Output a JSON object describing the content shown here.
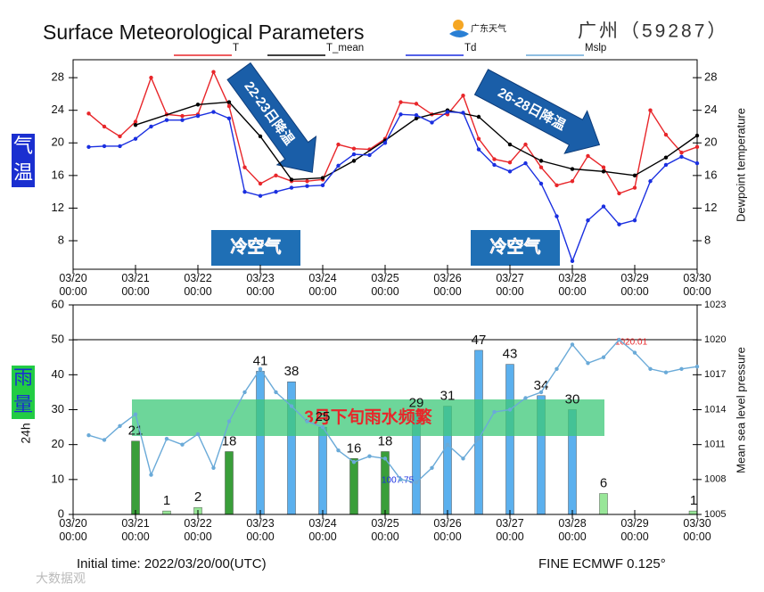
{
  "header": {
    "title": "Surface Meteorological Parameters",
    "logo": "广东天气",
    "station": "广州（59287）"
  },
  "chart_data": [
    {
      "type": "line",
      "ylabel": "气温",
      "y2label": "Dewpoint temperature",
      "xlim": [
        "03/20 00:00",
        "03/30 00:00"
      ],
      "xticks": [
        "03/20 00:00",
        "03/21 00:00",
        "03/22 00:00",
        "03/23 00:00",
        "03/24 00:00",
        "03/25 00:00",
        "03/26 00:00",
        "03/27 00:00",
        "03/28 00:00",
        "03/29 00:00",
        "03/30 00:00"
      ],
      "ylim": [
        4.5,
        30.2
      ],
      "yticks": [
        8,
        12,
        16,
        20,
        24,
        28
      ],
      "y2lim": [
        4.5,
        30.2
      ],
      "y2ticks": [
        8,
        12,
        16,
        20,
        24,
        28
      ],
      "series": [
        {
          "name": "T",
          "color": "#e8262a",
          "x": [
            "03/20 06:00",
            "03/20 12:00",
            "03/20 18:00",
            "03/21 00:00",
            "03/21 06:00",
            "03/21 12:00",
            "03/21 18:00",
            "03/22 00:00",
            "03/22 06:00",
            "03/22 12:00",
            "03/22 18:00",
            "03/23 00:00",
            "03/23 06:00",
            "03/23 12:00",
            "03/23 18:00",
            "03/24 00:00",
            "03/24 06:00",
            "03/24 12:00",
            "03/24 18:00",
            "03/25 00:00",
            "03/25 06:00",
            "03/25 12:00",
            "03/25 18:00",
            "03/26 00:00",
            "03/26 06:00",
            "03/26 12:00",
            "03/26 18:00",
            "03/27 00:00",
            "03/27 06:00",
            "03/27 12:00",
            "03/27 18:00",
            "03/28 00:00",
            "03/28 06:00",
            "03/28 12:00",
            "03/28 18:00",
            "03/29 00:00",
            "03/29 06:00",
            "03/29 12:00",
            "03/29 18:00",
            "03/30 00:00"
          ],
          "values": [
            23.6,
            22.0,
            20.8,
            22.6,
            28.0,
            23.5,
            23.3,
            23.5,
            28.7,
            24.5,
            17.0,
            15.0,
            16.0,
            15.3,
            15.3,
            15.5,
            19.8,
            19.3,
            19.2,
            20.5,
            25.0,
            24.8,
            23.5,
            23.5,
            25.8,
            20.5,
            18.0,
            17.6,
            19.8,
            17.0,
            14.8,
            15.3,
            18.4,
            17.0,
            13.8,
            14.5,
            24.0,
            21.0,
            18.8,
            19.5
          ]
        },
        {
          "name": "T_mean",
          "color": "#000000",
          "x": [
            "03/21 00:00",
            "03/22 00:00",
            "03/22 12:00",
            "03/23 00:00",
            "03/23 12:00",
            "03/24 00:00",
            "03/24 12:00",
            "03/25 00:00",
            "03/25 12:00",
            "03/26 00:00",
            "03/26 12:00",
            "03/27 00:00",
            "03/27 12:00",
            "03/28 00:00",
            "03/28 12:00",
            "03/29 00:00",
            "03/29 12:00",
            "03/30 00:00"
          ],
          "values": [
            22.2,
            24.7,
            25.0,
            20.8,
            15.5,
            15.7,
            17.8,
            20.3,
            23.0,
            24.0,
            23.2,
            19.8,
            17.8,
            16.8,
            16.5,
            16.0,
            18.2,
            20.9
          ]
        },
        {
          "name": "Td",
          "color": "#1a2fe0",
          "x": [
            "03/20 06:00",
            "03/20 12:00",
            "03/20 18:00",
            "03/21 00:00",
            "03/21 06:00",
            "03/21 12:00",
            "03/21 18:00",
            "03/22 00:00",
            "03/22 06:00",
            "03/22 12:00",
            "03/22 18:00",
            "03/23 00:00",
            "03/23 06:00",
            "03/23 12:00",
            "03/23 18:00",
            "03/24 00:00",
            "03/24 06:00",
            "03/24 12:00",
            "03/24 18:00",
            "03/25 00:00",
            "03/25 06:00",
            "03/25 12:00",
            "03/25 18:00",
            "03/26 00:00",
            "03/26 06:00",
            "03/26 12:00",
            "03/26 18:00",
            "03/27 00:00",
            "03/27 06:00",
            "03/27 12:00",
            "03/27 18:00",
            "03/28 00:00",
            "03/28 06:00",
            "03/28 12:00",
            "03/28 18:00",
            "03/29 00:00",
            "03/29 06:00",
            "03/29 12:00",
            "03/29 18:00",
            "03/30 00:00"
          ],
          "values": [
            19.5,
            19.6,
            19.6,
            20.5,
            22.0,
            22.8,
            22.8,
            23.3,
            23.8,
            23.0,
            14.0,
            13.5,
            14.0,
            14.5,
            14.7,
            14.8,
            17.2,
            18.6,
            18.5,
            20.0,
            23.5,
            23.4,
            22.5,
            23.8,
            23.7,
            19.2,
            17.3,
            16.5,
            17.5,
            15.0,
            11.0,
            5.5,
            10.5,
            12.2,
            10.0,
            10.5,
            15.3,
            17.3,
            18.3,
            17.5
          ]
        }
      ],
      "annotations": [
        "22-23日降温",
        "26-28日降温",
        "冷空气",
        "冷空气"
      ]
    },
    {
      "type": "bar",
      "ylabel": "雨量",
      "ylabel_unit": "24h",
      "y2label": "Mean sea level pressure",
      "xlim": [
        "03/20 00:00",
        "03/30 00:00"
      ],
      "xticks": [
        "03/20 00:00",
        "03/21 00:00",
        "03/22 00:00",
        "03/23 00:00",
        "03/24 00:00",
        "03/25 00:00",
        "03/26 00:00",
        "03/27 00:00",
        "03/28 00:00",
        "03/29 00:00",
        "03/30 00:00"
      ],
      "ylim": [
        0,
        60
      ],
      "yticks": [
        0,
        10,
        20,
        30,
        40,
        50,
        60
      ],
      "y2lim": [
        1005,
        1023
      ],
      "y2ticks": [
        1005,
        1008,
        1011,
        1014,
        1017,
        1020,
        1023
      ],
      "x": [
        "03/21 00:00",
        "03/21 12:00",
        "03/22 00:00",
        "03/22 12:00",
        "03/23 00:00",
        "03/23 12:00",
        "03/24 00:00",
        "03/24 12:00",
        "03/25 00:00",
        "03/25 12:00",
        "03/26 00:00",
        "03/26 12:00",
        "03/27 00:00",
        "03/27 12:00",
        "03/28 00:00",
        "03/28 12:00",
        "03/30 00:00"
      ],
      "values": [
        21,
        1,
        2,
        18,
        41,
        38,
        25,
        16,
        18,
        29,
        31,
        47,
        43,
        34,
        30,
        6,
        1
      ],
      "colors": [
        "#3a9e3a",
        "#98e698",
        "#98e698",
        "#3a9e3a",
        "#5bb0ee",
        "#5bb0ee",
        "#5bb0ee",
        "#3a9e3a",
        "#3a9e3a",
        "#5bb0ee",
        "#5bb0ee",
        "#5bb0ee",
        "#5bb0ee",
        "#5bb0ee",
        "#5bb0ee",
        "#98e698",
        "#98e698"
      ],
      "series": [
        {
          "name": "Mslp",
          "color": "#6aaad8",
          "axis": "y2",
          "x": [
            "03/20 06:00",
            "03/20 12:00",
            "03/20 18:00",
            "03/21 00:00",
            "03/21 06:00",
            "03/21 12:00",
            "03/21 18:00",
            "03/22 00:00",
            "03/22 06:00",
            "03/22 12:00",
            "03/22 18:00",
            "03/23 00:00",
            "03/23 06:00",
            "03/23 12:00",
            "03/23 18:00",
            "03/24 00:00",
            "03/24 06:00",
            "03/24 12:00",
            "03/24 18:00",
            "03/25 00:00",
            "03/25 06:00",
            "03/25 12:00",
            "03/25 18:00",
            "03/26 00:00",
            "03/26 06:00",
            "03/26 12:00",
            "03/26 18:00",
            "03/27 00:00",
            "03/27 06:00",
            "03/27 12:00",
            "03/27 18:00",
            "03/28 00:00",
            "03/28 06:00",
            "03/28 12:00",
            "03/28 18:00",
            "03/29 00:00",
            "03/29 06:00",
            "03/29 12:00",
            "03/29 18:00",
            "03/30 00:00"
          ],
          "values": [
            1011.8,
            1011.4,
            1012.6,
            1013.6,
            1008.4,
            1011.5,
            1011.0,
            1011.9,
            1009.0,
            1013.0,
            1015.5,
            1017.5,
            1015.5,
            1014.3,
            1013.0,
            1012.5,
            1010.5,
            1009.5,
            1010.0,
            1009.8,
            1008.0,
            1007.75,
            1009.0,
            1011.0,
            1009.8,
            1011.5,
            1013.8,
            1014.0,
            1015.0,
            1015.5,
            1017.5,
            1019.6,
            1018.0,
            1018.5,
            1020.01,
            1018.9,
            1017.5,
            1017.2,
            1017.5,
            1017.7
          ]
        }
      ],
      "mslp_max": 1020.01,
      "mslp_min": 1007.75,
      "annotations": [
        "3月下旬雨水频繁"
      ]
    }
  ],
  "footer": {
    "init": "Initial time: 2022/03/20/00(UTC)",
    "model": "FINE ECMWF 0.125°",
    "watermark": "大数据观"
  }
}
